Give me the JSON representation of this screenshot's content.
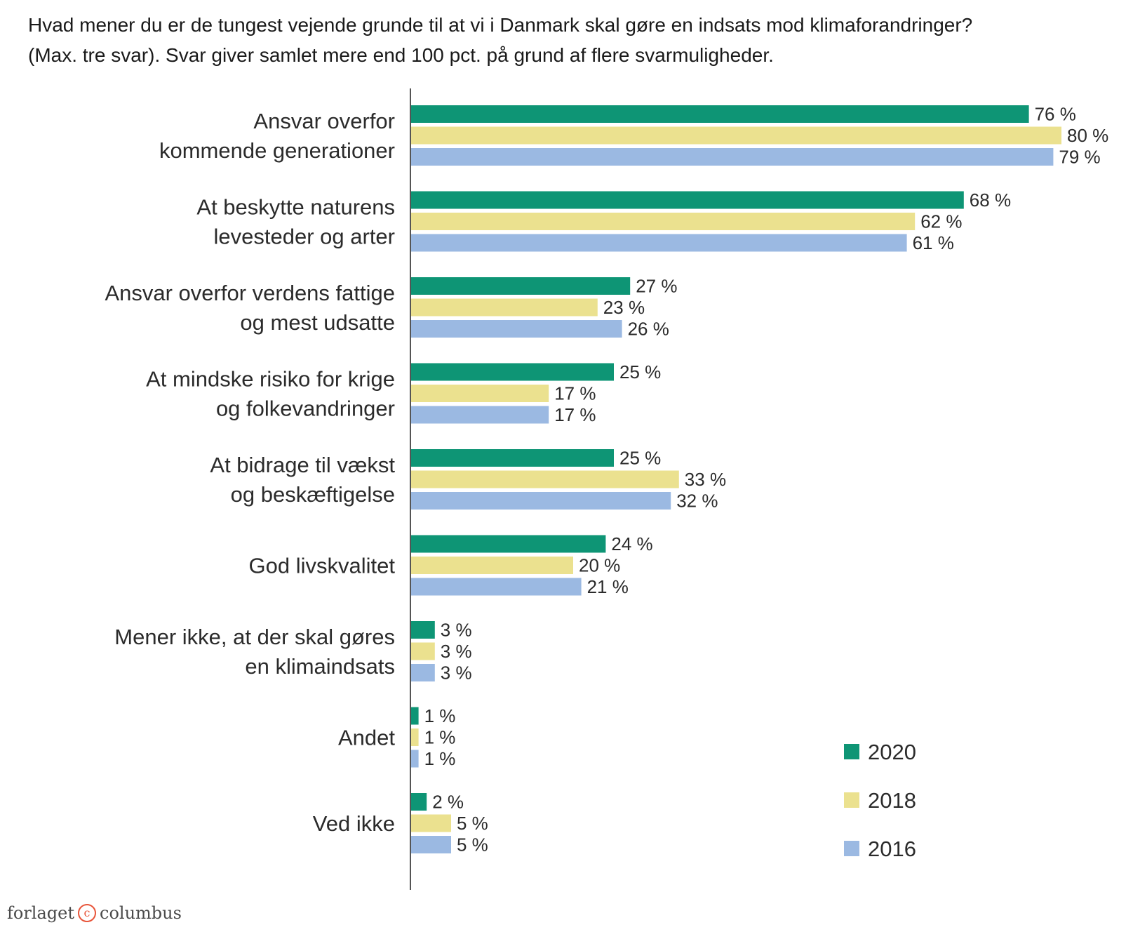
{
  "title_lines": [
    "Hvad mener du er de tungest vejende grunde til at vi i Danmark skal gøre en indsats mod klimaforandringer?",
    "(Max. tre svar). Svar giver samlet mere end 100 pct. på grund af flere svarmuligheder."
  ],
  "chart_data": {
    "type": "bar",
    "orientation": "horizontal",
    "title": "Hvad mener du er de tungest vejende grunde til at vi i Danmark skal gøre en indsats mod klimaforandringer? (Max. tre svar). Svar giver samlet mere end 100 pct. på grund af flere svarmuligheder.",
    "categories": [
      [
        "Ansvar overfor",
        "kommende generationer"
      ],
      [
        "At beskytte naturens",
        "levesteder og arter"
      ],
      [
        "Ansvar overfor verdens fattige",
        "og mest udsatte"
      ],
      [
        "At mindske risiko for krige",
        "og folkevandringer"
      ],
      [
        "At bidrage til vækst",
        "og beskæftigelse"
      ],
      [
        "God livskvalitet"
      ],
      [
        "Mener ikke, at der skal gøres",
        "en klimaindsats"
      ],
      [
        "Andet"
      ],
      [
        "Ved ikke"
      ]
    ],
    "series": [
      {
        "name": "2020",
        "color": "#0e9575",
        "values": [
          76,
          68,
          27,
          25,
          25,
          24,
          3,
          1,
          2
        ]
      },
      {
        "name": "2018",
        "color": "#ebe18f",
        "values": [
          80,
          62,
          23,
          17,
          33,
          20,
          3,
          1,
          5
        ]
      },
      {
        "name": "2016",
        "color": "#9bb9e2",
        "values": [
          79,
          61,
          26,
          17,
          32,
          21,
          3,
          1,
          5
        ]
      }
    ],
    "value_suffix": " %",
    "xlim": [
      0,
      80
    ],
    "grid": false,
    "legend_position": "bottom-right"
  },
  "brand": {
    "left": "forlaget",
    "mark": "c",
    "right": "columbus"
  }
}
